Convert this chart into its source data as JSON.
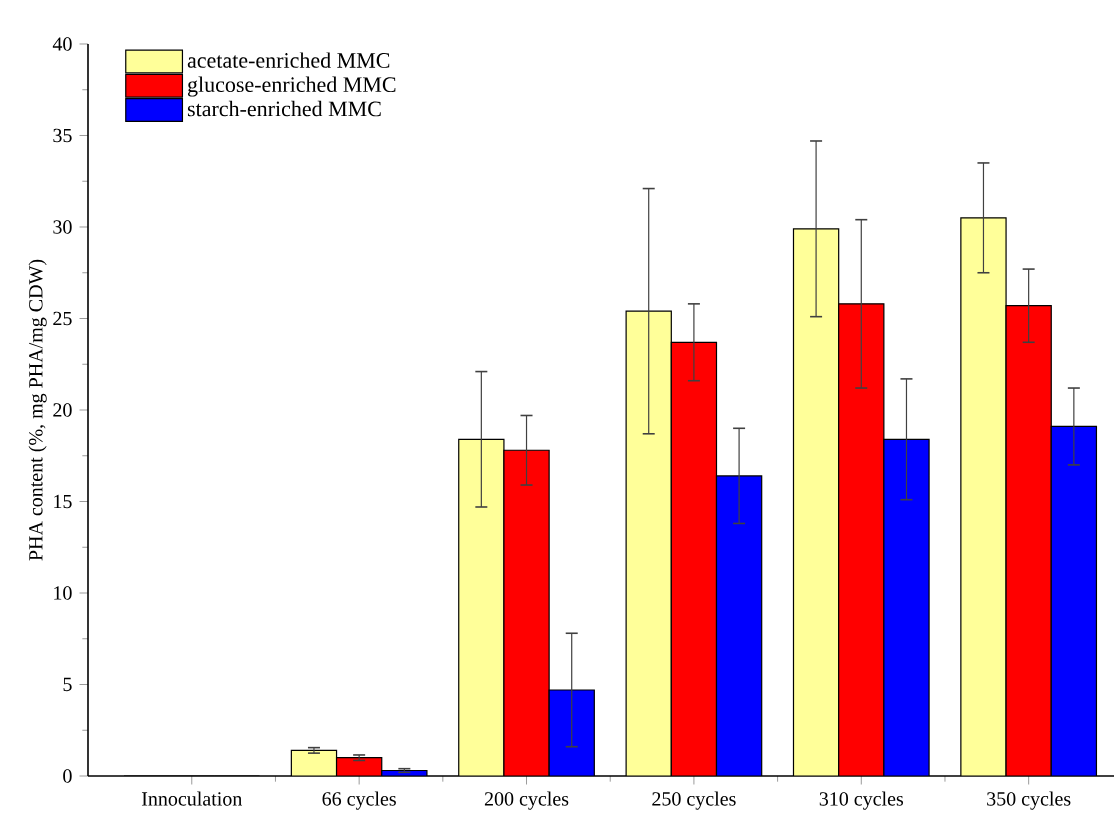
{
  "chart_data": {
    "type": "bar",
    "ylabel": "PHA content (%, mg PHA/mg CDW)",
    "categories": [
      "Innoculation",
      "66 cycles",
      "200 cycles",
      "250 cycles",
      "310 cycles",
      "350 cycles"
    ],
    "series": [
      {
        "name": "acetate-enriched MMC",
        "color": "#ffff99",
        "values": [
          0,
          1.4,
          18.4,
          25.4,
          29.9,
          30.5
        ],
        "errors": [
          null,
          0.15,
          3.7,
          6.7,
          4.8,
          3.0
        ]
      },
      {
        "name": "glucose-enriched MMC",
        "color": "#ff0000",
        "values": [
          0,
          1.0,
          17.8,
          23.7,
          25.8,
          25.7
        ],
        "errors": [
          null,
          0.15,
          1.9,
          2.1,
          4.6,
          2.0
        ]
      },
      {
        "name": "starch-enriched MMC",
        "color": "#0000ff",
        "values": [
          0,
          0.3,
          4.7,
          16.4,
          18.4,
          19.1
        ],
        "errors": [
          null,
          0.1,
          3.1,
          2.6,
          3.3,
          2.1
        ]
      }
    ],
    "ylim": [
      0,
      40
    ],
    "yticks": [
      0,
      5,
      10,
      15,
      20,
      25,
      30,
      35,
      40
    ],
    "grid": false,
    "legend": "top left"
  }
}
